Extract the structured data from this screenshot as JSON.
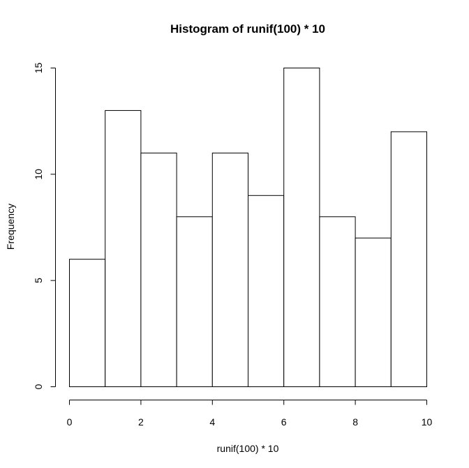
{
  "chart_data": {
    "type": "bar",
    "subtype": "histogram",
    "title": "Histogram of runif(100) * 10",
    "xlabel": "runif(100) * 10",
    "ylabel": "Frequency",
    "bins": [
      {
        "start": 0,
        "end": 1,
        "count": 6
      },
      {
        "start": 1,
        "end": 2,
        "count": 13
      },
      {
        "start": 2,
        "end": 3,
        "count": 11
      },
      {
        "start": 3,
        "end": 4,
        "count": 8
      },
      {
        "start": 4,
        "end": 5,
        "count": 11
      },
      {
        "start": 5,
        "end": 6,
        "count": 9
      },
      {
        "start": 6,
        "end": 7,
        "count": 15
      },
      {
        "start": 7,
        "end": 8,
        "count": 8
      },
      {
        "start": 8,
        "end": 9,
        "count": 7
      },
      {
        "start": 9,
        "end": 10,
        "count": 12
      }
    ],
    "xlim": [
      0,
      10
    ],
    "ylim": [
      0,
      15
    ],
    "xticks": [
      0,
      2,
      4,
      6,
      8,
      10
    ],
    "yticks": [
      0,
      5,
      10,
      15
    ],
    "grid": false,
    "bar_fill": "#ffffff",
    "bar_stroke": "#000000"
  }
}
